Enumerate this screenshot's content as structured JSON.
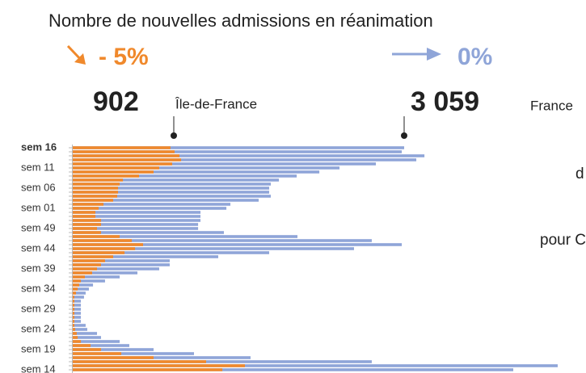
{
  "chart_data": {
    "type": "bar",
    "orientation": "horizontal",
    "title": "Nombre de nouvelles admissions en réanimation",
    "annotations": [
      "- 5%",
      "0%",
      "902",
      "Île-de-France",
      "3 059",
      "France",
      "d",
      "pour C"
    ],
    "categories": [
      "sem 16",
      null,
      null,
      null,
      null,
      "sem 11",
      null,
      null,
      null,
      null,
      "sem 06",
      null,
      null,
      null,
      null,
      "sem 01",
      null,
      null,
      null,
      null,
      "sem 49",
      null,
      null,
      null,
      null,
      "sem 44",
      null,
      null,
      null,
      null,
      "sem 39",
      null,
      null,
      null,
      null,
      "sem 34",
      null,
      null,
      null,
      null,
      "sem 29",
      null,
      null,
      null,
      null,
      "sem 24",
      null,
      null,
      null,
      null,
      "sem 19",
      null,
      null,
      null,
      null,
      "sem 14"
    ],
    "series": [
      {
        "name": "France",
        "color": "#8fa5d8",
        "values": [
          3059,
          3037,
          3246,
          3171,
          2798,
          2462,
          2276,
          2067,
          1903,
          1828,
          1813,
          1813,
          1828,
          1716,
          1455,
          1418,
          1179,
          1179,
          1179,
          1157,
          1157,
          1395,
          2074,
          2760,
          3037,
          2596,
          1813,
          1343,
          895,
          895,
          798,
          597,
          433,
          298,
          187,
          149,
          119,
          104,
          75,
          75,
          75,
          75,
          75,
          75,
          119,
          134,
          224,
          261,
          433,
          522,
          746,
          1119,
          1641,
          2760,
          4476,
          4066
        ]
      },
      {
        "name": "Île-de-France",
        "color": "#f0892c",
        "values": [
          902,
          940,
          985,
          1000,
          918,
          798,
          746,
          612,
          463,
          433,
          418,
          418,
          410,
          373,
          284,
          239,
          209,
          209,
          261,
          261,
          224,
          261,
          433,
          545,
          649,
          575,
          478,
          373,
          298,
          261,
          224,
          179,
          112,
          75,
          60,
          45,
          30,
          15,
          15,
          15,
          15,
          15,
          15,
          15,
          15,
          22,
          37,
          45,
          75,
          164,
          261,
          448,
          746,
          1231,
          1589,
          1381
        ]
      }
    ],
    "xlim": [
      0,
      4700
    ]
  }
}
